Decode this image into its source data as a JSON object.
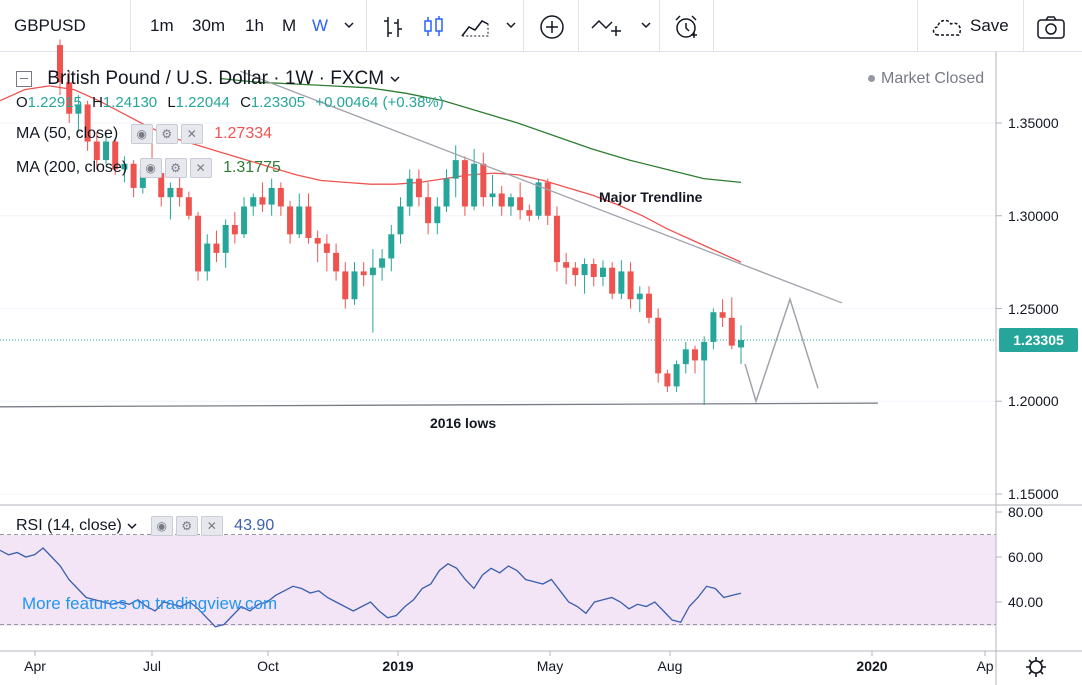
{
  "toolbar": {
    "symbol": "GBPUSD",
    "intervals": [
      "1m",
      "30m",
      "1h",
      "M",
      "W"
    ],
    "active_interval": "W",
    "save_label": "Save",
    "icons": [
      "chevron-down-icon",
      "bar-chart-icon",
      "candles-icon",
      "area-chart-icon",
      "chevron-down-icon",
      "add-indicator-icon",
      "drawing-tool-icon",
      "chevron-down-icon",
      "alert-clock-icon",
      "cloud-save-icon",
      "camera-icon"
    ]
  },
  "legend": {
    "title": "British Pound / U.S. Dollar · 1W · FXCM",
    "market_status": "Market Closed",
    "ohlc": {
      "o_label": "O",
      "o": "1.22915",
      "h_label": "H",
      "h": "1.24130",
      "l_label": "L",
      "l": "1.22044",
      "c_label": "C",
      "c": "1.23305",
      "change": "+0.00464 (+0.38%)"
    },
    "ma50": {
      "label": "MA (50, close)",
      "value": "1.27334",
      "color": "#ef5350"
    },
    "ma200": {
      "label": "MA (200, close)",
      "value": "1.31775",
      "color": "#2e7d32"
    },
    "rsi": {
      "label": "RSI (14, close)",
      "value": "43.90",
      "color": "#3b5fad"
    }
  },
  "annotations": {
    "trendline": "Major Trendline",
    "lows": "2016 lows",
    "watermark": "More features on tradingview.com"
  },
  "colors": {
    "up": "#26a69a",
    "down": "#ef5350",
    "accent": "#2962ff",
    "rsi_band": "#f3e5f5"
  },
  "chart_data": [
    {
      "type": "candlestick",
      "symbol": "GBPUSD",
      "interval": "1W",
      "y_ticks": [
        "1.15000",
        "1.20000",
        "1.25000",
        "1.30000",
        "1.35000"
      ],
      "ylim": [
        1.145,
        1.38
      ],
      "last_price": "1.23305",
      "x_tick_labels": [
        "Apr",
        "Jul",
        "Oct",
        "2019",
        "May",
        "Aug",
        "2020",
        "Ap"
      ],
      "candles_note": "weekly OHLC, approximate",
      "candles": [
        [
          1.392,
          1.395,
          1.365,
          1.372
        ],
        [
          1.372,
          1.378,
          1.35,
          1.355
        ],
        [
          1.355,
          1.365,
          1.345,
          1.36
        ],
        [
          1.36,
          1.362,
          1.335,
          1.34
        ],
        [
          1.34,
          1.345,
          1.325,
          1.33
        ],
        [
          1.33,
          1.345,
          1.328,
          1.34
        ],
        [
          1.34,
          1.342,
          1.322,
          1.325
        ],
        [
          1.325,
          1.332,
          1.318,
          1.328
        ],
        [
          1.328,
          1.33,
          1.31,
          1.315
        ],
        [
          1.315,
          1.33,
          1.312,
          1.325
        ],
        [
          1.325,
          1.34,
          1.322,
          1.323
        ],
        [
          1.323,
          1.328,
          1.305,
          1.31
        ],
        [
          1.31,
          1.318,
          1.298,
          1.315
        ],
        [
          1.315,
          1.325,
          1.305,
          1.31
        ],
        [
          1.31,
          1.313,
          1.298,
          1.3
        ],
        [
          1.3,
          1.302,
          1.265,
          1.27
        ],
        [
          1.27,
          1.29,
          1.265,
          1.285
        ],
        [
          1.285,
          1.292,
          1.275,
          1.28
        ],
        [
          1.28,
          1.298,
          1.272,
          1.295
        ],
        [
          1.295,
          1.302,
          1.285,
          1.29
        ],
        [
          1.29,
          1.31,
          1.288,
          1.305
        ],
        [
          1.305,
          1.312,
          1.3,
          1.31
        ],
        [
          1.31,
          1.318,
          1.302,
          1.306
        ],
        [
          1.306,
          1.32,
          1.3,
          1.315
        ],
        [
          1.315,
          1.318,
          1.3,
          1.305
        ],
        [
          1.305,
          1.308,
          1.285,
          1.29
        ],
        [
          1.29,
          1.312,
          1.288,
          1.305
        ],
        [
          1.305,
          1.312,
          1.285,
          1.288
        ],
        [
          1.288,
          1.292,
          1.275,
          1.285
        ],
        [
          1.285,
          1.29,
          1.27,
          1.28
        ],
        [
          1.28,
          1.285,
          1.265,
          1.27
        ],
        [
          1.27,
          1.275,
          1.25,
          1.255
        ],
        [
          1.255,
          1.275,
          1.252,
          1.27
        ],
        [
          1.27,
          1.275,
          1.262,
          1.268
        ],
        [
          1.268,
          1.282,
          1.237,
          1.272
        ],
        [
          1.272,
          1.282,
          1.265,
          1.277
        ],
        [
          1.277,
          1.295,
          1.27,
          1.29
        ],
        [
          1.29,
          1.31,
          1.285,
          1.305
        ],
        [
          1.305,
          1.325,
          1.3,
          1.32
        ],
        [
          1.32,
          1.325,
          1.305,
          1.31
        ],
        [
          1.31,
          1.318,
          1.29,
          1.296
        ],
        [
          1.296,
          1.31,
          1.29,
          1.305
        ],
        [
          1.305,
          1.325,
          1.302,
          1.32
        ],
        [
          1.32,
          1.338,
          1.31,
          1.33
        ],
        [
          1.33,
          1.332,
          1.3,
          1.305
        ],
        [
          1.305,
          1.336,
          1.303,
          1.328
        ],
        [
          1.328,
          1.334,
          1.305,
          1.31
        ],
        [
          1.31,
          1.322,
          1.305,
          1.312
        ],
        [
          1.312,
          1.316,
          1.3,
          1.305
        ],
        [
          1.305,
          1.312,
          1.3,
          1.31
        ],
        [
          1.31,
          1.318,
          1.298,
          1.303
        ],
        [
          1.303,
          1.306,
          1.297,
          1.3
        ],
        [
          1.3,
          1.32,
          1.298,
          1.318
        ],
        [
          1.318,
          1.32,
          1.295,
          1.3
        ],
        [
          1.3,
          1.305,
          1.27,
          1.275
        ],
        [
          1.275,
          1.28,
          1.263,
          1.272
        ],
        [
          1.272,
          1.275,
          1.262,
          1.268
        ],
        [
          1.268,
          1.277,
          1.258,
          1.274
        ],
        [
          1.274,
          1.277,
          1.262,
          1.267
        ],
        [
          1.267,
          1.276,
          1.262,
          1.272
        ],
        [
          1.272,
          1.275,
          1.255,
          1.258
        ],
        [
          1.258,
          1.276,
          1.255,
          1.27
        ],
        [
          1.27,
          1.275,
          1.25,
          1.255
        ],
        [
          1.255,
          1.262,
          1.248,
          1.258
        ],
        [
          1.258,
          1.262,
          1.242,
          1.245
        ],
        [
          1.245,
          1.25,
          1.21,
          1.215
        ],
        [
          1.215,
          1.217,
          1.205,
          1.208
        ],
        [
          1.208,
          1.222,
          1.205,
          1.22
        ],
        [
          1.22,
          1.232,
          1.215,
          1.228
        ],
        [
          1.228,
          1.23,
          1.215,
          1.222
        ],
        [
          1.222,
          1.235,
          1.198,
          1.232
        ],
        [
          1.232,
          1.25,
          1.228,
          1.248
        ],
        [
          1.248,
          1.255,
          1.24,
          1.245
        ],
        [
          1.245,
          1.256,
          1.228,
          1.23
        ],
        [
          1.229,
          1.241,
          1.22,
          1.233
        ]
      ],
      "ma50_series": [
        1.362,
        1.368,
        1.37,
        1.368,
        1.362,
        1.355,
        1.348,
        1.342,
        1.338,
        1.334,
        1.33,
        1.326,
        1.322,
        1.319,
        1.318,
        1.317,
        1.317,
        1.318,
        1.32,
        1.322,
        1.323,
        1.322,
        1.319,
        1.315,
        1.311,
        1.306,
        1.3,
        1.293,
        1.287,
        1.281,
        1.275
      ],
      "ma200_series": [
        1.374,
        1.372,
        1.371,
        1.37,
        1.369,
        1.366,
        1.362,
        1.356,
        1.35,
        1.343,
        1.336,
        1.33,
        1.325,
        1.32,
        1.318
      ],
      "trendline": [
        1.378,
        1.253
      ],
      "support_line": [
        1.197,
        1.199
      ],
      "projection_path": [
        1.22,
        1.2,
        1.255,
        1.207
      ],
      "annotations": [
        "Major Trendline",
        "2016 lows"
      ]
    },
    {
      "type": "line",
      "name": "RSI (14, close)",
      "y_ticks": [
        "40.00",
        "60.00",
        "80.00"
      ],
      "ylim": [
        24,
        80
      ],
      "overbought": 70,
      "oversold": 30,
      "values": [
        63,
        61,
        62,
        60,
        61,
        64,
        60,
        56,
        50,
        46,
        42,
        41,
        40,
        39,
        40,
        39,
        41,
        38,
        36,
        40,
        39,
        38,
        40,
        37,
        33,
        29,
        30,
        34,
        38,
        36,
        39,
        40,
        43,
        45,
        47,
        46,
        44,
        45,
        42,
        40,
        38,
        36,
        38,
        40,
        36,
        33,
        34,
        38,
        41,
        46,
        48,
        54,
        57,
        55,
        50,
        46,
        52,
        55,
        53,
        56,
        54,
        50,
        49,
        48,
        50,
        45,
        40,
        38,
        35,
        40,
        41,
        42,
        40,
        37,
        39,
        38,
        40,
        36,
        32,
        31,
        38,
        42,
        47,
        46,
        42,
        43,
        43.9
      ]
    }
  ]
}
